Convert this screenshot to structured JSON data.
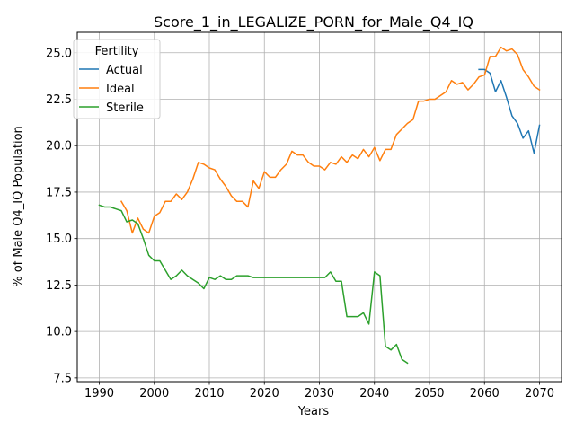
{
  "chart_data": {
    "type": "line",
    "title": "Score_1_in_LEGALIZE_PORN_for_Male_Q4_IQ",
    "xlabel": "Years",
    "ylabel": "% of Male Q4_IQ Population",
    "xlim": [
      1986,
      2074
    ],
    "ylim": [
      7.3,
      26.1
    ],
    "x_ticks": [
      1990,
      2000,
      2010,
      2020,
      2030,
      2040,
      2050,
      2060,
      2070
    ],
    "y_ticks": [
      7.5,
      10.0,
      12.5,
      15.0,
      17.5,
      20.0,
      22.5,
      25.0
    ],
    "grid": true,
    "legend": {
      "title": "Fertility",
      "placement": "top-left"
    },
    "colors": {
      "Actual": "#1f77b4",
      "Ideal": "#ff7f0e",
      "Sterile": "#2ca02c"
    },
    "series": [
      {
        "name": "Actual",
        "x": [
          2059,
          2060,
          2061,
          2062,
          2063,
          2064,
          2065,
          2066,
          2067,
          2068,
          2069,
          2070
        ],
        "y": [
          24.1,
          24.1,
          23.9,
          22.9,
          23.5,
          22.6,
          21.6,
          21.2,
          20.4,
          20.8,
          19.6,
          21.1
        ]
      },
      {
        "name": "Ideal",
        "x": [
          1994,
          1995,
          1996,
          1997,
          1998,
          1999,
          2000,
          2001,
          2002,
          2003,
          2004,
          2005,
          2006,
          2007,
          2008,
          2009,
          2010,
          2011,
          2012,
          2013,
          2014,
          2015,
          2016,
          2017,
          2018,
          2019,
          2020,
          2021,
          2022,
          2023,
          2024,
          2025,
          2026,
          2027,
          2028,
          2029,
          2030,
          2031,
          2032,
          2033,
          2034,
          2035,
          2036,
          2037,
          2038,
          2039,
          2040,
          2041,
          2042,
          2043,
          2044,
          2045,
          2046,
          2047,
          2048,
          2049,
          2050,
          2051,
          2052,
          2053,
          2054,
          2055,
          2056,
          2057,
          2058,
          2059,
          2060,
          2061,
          2062,
          2063,
          2064,
          2065,
          2066,
          2067,
          2068,
          2069,
          2070
        ],
        "y": [
          17.0,
          16.5,
          15.3,
          16.1,
          15.5,
          15.3,
          16.2,
          16.4,
          17.0,
          17.0,
          17.4,
          17.1,
          17.5,
          18.2,
          19.1,
          19.0,
          18.8,
          18.7,
          18.2,
          17.8,
          17.3,
          17.0,
          17.0,
          16.7,
          18.1,
          17.7,
          18.6,
          18.3,
          18.3,
          18.7,
          19.0,
          19.7,
          19.5,
          19.5,
          19.1,
          18.9,
          18.9,
          18.7,
          19.1,
          19.0,
          19.4,
          19.1,
          19.5,
          19.3,
          19.8,
          19.4,
          19.9,
          19.2,
          19.8,
          19.8,
          20.6,
          20.9,
          21.2,
          21.4,
          22.4,
          22.4,
          22.5,
          22.5,
          22.7,
          22.9,
          23.5,
          23.3,
          23.4,
          23.0,
          23.3,
          23.7,
          23.8,
          24.8,
          24.8,
          25.3,
          25.1,
          25.2,
          24.9,
          24.1,
          23.7,
          23.2,
          23.0
        ]
      },
      {
        "name": "Sterile",
        "x": [
          1990,
          1991,
          1992,
          1993,
          1994,
          1995,
          1996,
          1997,
          1998,
          1999,
          2000,
          2001,
          2002,
          2003,
          2004,
          2005,
          2006,
          2007,
          2008,
          2009,
          2010,
          2011,
          2012,
          2013,
          2014,
          2015,
          2016,
          2017,
          2018,
          2019,
          2020,
          2021,
          2022,
          2023,
          2024,
          2025,
          2026,
          2027,
          2028,
          2029,
          2030,
          2031,
          2032,
          2033,
          2034,
          2035,
          2036,
          2037,
          2038,
          2039,
          2040,
          2041,
          2042,
          2043,
          2044,
          2045,
          2046
        ],
        "y": [
          16.8,
          16.7,
          16.7,
          16.6,
          16.5,
          15.9,
          16.0,
          15.8,
          15.0,
          14.1,
          13.8,
          13.8,
          13.3,
          12.8,
          13.0,
          13.3,
          13.0,
          12.8,
          12.6,
          12.3,
          12.9,
          12.8,
          13.0,
          12.8,
          12.8,
          13.0,
          13.0,
          13.0,
          12.9,
          12.9,
          12.9,
          12.9,
          12.9,
          12.9,
          12.9,
          12.9,
          12.9,
          12.9,
          12.9,
          12.9,
          12.9,
          12.9,
          13.2,
          12.7,
          12.7,
          10.8,
          10.8,
          10.8,
          11.0,
          10.4,
          13.2,
          13.0,
          9.2,
          9.0,
          9.3,
          8.5,
          8.3
        ]
      }
    ]
  }
}
